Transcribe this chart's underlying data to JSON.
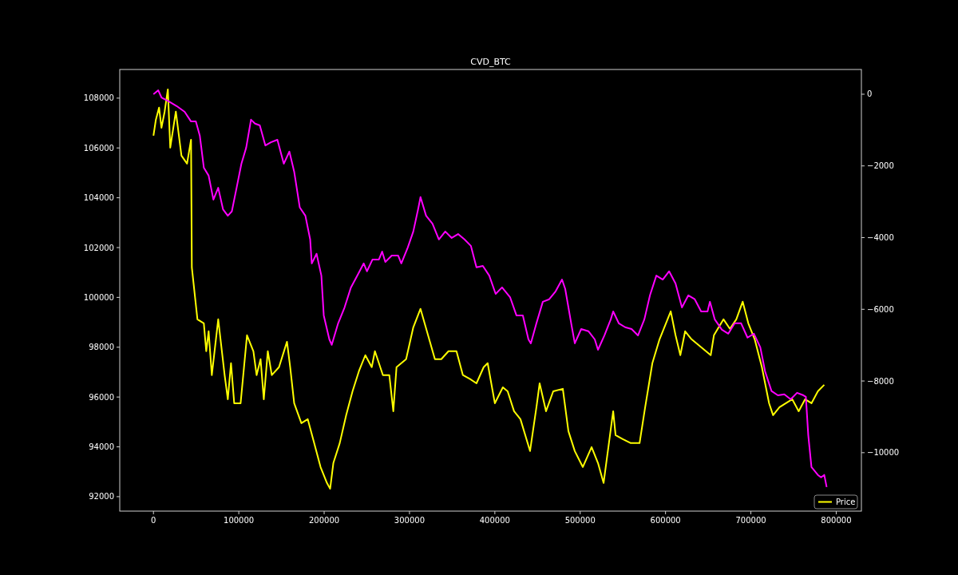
{
  "chart_data": {
    "type": "line",
    "title": "CVD_BTC",
    "xlim": [
      -39500,
      829500
    ],
    "xticks": [
      0,
      100000,
      200000,
      300000,
      400000,
      500000,
      600000,
      700000,
      800000
    ],
    "ylim": [
      91420,
      109150
    ],
    "yticks": [
      92000,
      94000,
      96000,
      98000,
      100000,
      102000,
      104000,
      106000,
      108000
    ],
    "y2lim": [
      -11630,
      690
    ],
    "y2ticks": [
      {
        "value": 0,
        "label": "0"
      },
      {
        "value": -2000,
        "label": "−2000"
      },
      {
        "value": -4000,
        "label": "−4000"
      },
      {
        "value": -6000,
        "label": "−6000"
      },
      {
        "value": -8000,
        "label": "−8000"
      },
      {
        "value": -10000,
        "label": "−10000"
      }
    ],
    "legend": "bottom right",
    "grid": false,
    "series": [
      {
        "name": "Price",
        "color": "#ffff00",
        "x": [
          0,
          2810,
          6560,
          9370,
          13110,
          16860,
          19670,
          26230,
          32790,
          39350,
          44030,
          44970,
          51520,
          59020,
          61830,
          64640,
          68390,
          75880,
          83380,
          87120,
          90870,
          94620,
          102110,
          109610,
          117100,
          120850,
          125530,
          129280,
          133960,
          138650,
          147080,
          156450,
          160190,
          164880,
          173310,
          180800,
          188300,
          195790,
          203290,
          207030,
          210780,
          218270,
          225770,
          233260,
          240760,
          248250,
          255750,
          259500,
          268860,
          276360,
          281040,
          284790,
          296030,
          304460,
          312890,
          320390,
          329760,
          337250,
          345680,
          355050,
          362550,
          370970,
          378470,
          386900,
          391580,
          400010,
          409380,
          415000,
          422500,
          430000,
          441240,
          448730,
          452480,
          459970,
          468400,
          479640,
          486200,
          493690,
          503060,
          513370,
          520860,
          527420,
          538660,
          541470,
          549900,
          559270,
          569580,
          576130,
          584560,
          593000,
          606110,
          611730,
          617350,
          622970,
          630470,
          641710,
          652950,
          656700,
          667940,
          675440,
          682930,
          690420,
          696980,
          704470,
          712900,
          721340,
          726020,
          733510,
          741010,
          748500,
          756000,
          763490,
          770990,
          778480,
          785970
        ],
        "values": [
          106490,
          107130,
          107620,
          106810,
          107460,
          108350,
          106010,
          107460,
          105690,
          105370,
          106330,
          101200,
          99120,
          98960,
          97840,
          98640,
          96880,
          99120,
          96880,
          95910,
          97360,
          95750,
          95750,
          98480,
          97840,
          96880,
          97520,
          95910,
          97840,
          96880,
          97200,
          98220,
          97200,
          95750,
          94950,
          95110,
          94150,
          93190,
          92550,
          92320,
          93350,
          94150,
          95270,
          96230,
          97040,
          97680,
          97200,
          97840,
          96880,
          96880,
          95430,
          97200,
          97520,
          98800,
          99540,
          98640,
          97520,
          97520,
          97840,
          97840,
          96880,
          96720,
          96550,
          97200,
          97360,
          95750,
          96390,
          96230,
          95430,
          95110,
          93830,
          95590,
          96550,
          95430,
          96230,
          96330,
          94630,
          93830,
          93190,
          93990,
          93350,
          92550,
          95430,
          94470,
          94310,
          94150,
          94150,
          95590,
          97360,
          98320,
          99440,
          98480,
          97680,
          98640,
          98320,
          98000,
          97680,
          98480,
          99120,
          98740,
          99120,
          99830,
          98960,
          98320,
          97200,
          95750,
          95270,
          95590,
          95750,
          95910,
          95430,
          95910,
          95750,
          96230,
          96490
        ]
      },
      {
        "color": "#ff00ff",
        "axis": "y2",
        "x": [
          0,
          5620,
          9370,
          17800,
          27170,
          36540,
          44030,
          49650,
          54330,
          59020,
          64640,
          70260,
          75880,
          81500,
          87120,
          91810,
          97430,
          103050,
          108670,
          114290,
          118970,
          124600,
          131150,
          137700,
          145200,
          152700,
          159260,
          164880,
          171440,
          178000,
          183610,
          185490,
          191110,
          196730,
          199540,
          206090,
          208900,
          216400,
          223890,
          231380,
          238880,
          246380,
          250130,
          256680,
          264180,
          267920,
          271670,
          279170,
          286660,
          290410,
          297900,
          304460,
          310080,
          312890,
          319450,
          326940,
          334440,
          341930,
          349430,
          356920,
          364420,
          371910,
          378470,
          385960,
          393460,
          400950,
          408450,
          417810,
          425310,
          432810,
          439360,
          442170,
          448730,
          456220,
          463720,
          471210,
          478710,
          482450,
          489950,
          493690,
          501190,
          509620,
          517110,
          520860,
          528350,
          535850,
          538660,
          545220,
          552710,
          560210,
          567700,
          575200,
          581760,
          589250,
          596750,
          604240,
          611730,
          619230,
          626730,
          634220,
          641710,
          649210,
          652020,
          657640,
          666070,
          673570,
          681060,
          688560,
          696050,
          703550,
          711040,
          716660,
          724160,
          731650,
          739150,
          746630,
          754120,
          761620,
          764430,
          767240,
          770990,
          778480,
          782230,
          785970,
          788780
        ],
        "values": [
          0,
          110,
          -90,
          -200,
          -330,
          -490,
          -760,
          -760,
          -1160,
          -2050,
          -2270,
          -2940,
          -2610,
          -3210,
          -3390,
          -3270,
          -2610,
          -1940,
          -1490,
          -710,
          -820,
          -870,
          -1430,
          -1340,
          -1270,
          -1940,
          -1600,
          -2160,
          -3160,
          -3390,
          -4050,
          -4720,
          -4450,
          -5060,
          -6170,
          -6840,
          -6990,
          -6390,
          -5950,
          -5390,
          -5060,
          -4720,
          -4940,
          -4610,
          -4610,
          -4390,
          -4680,
          -4500,
          -4500,
          -4720,
          -4280,
          -3830,
          -3210,
          -2870,
          -3390,
          -3610,
          -4050,
          -3830,
          -4010,
          -3900,
          -4050,
          -4230,
          -4830,
          -4790,
          -5060,
          -5570,
          -5390,
          -5660,
          -6170,
          -6170,
          -6840,
          -6950,
          -6390,
          -5790,
          -5720,
          -5500,
          -5170,
          -5430,
          -6460,
          -6950,
          -6550,
          -6610,
          -6840,
          -7130,
          -6730,
          -6280,
          -6060,
          -6390,
          -6500,
          -6550,
          -6730,
          -6280,
          -5610,
          -5060,
          -5170,
          -4940,
          -5280,
          -5950,
          -5610,
          -5720,
          -6060,
          -6060,
          -5790,
          -6280,
          -6570,
          -6680,
          -6390,
          -6390,
          -6790,
          -6680,
          -7060,
          -7730,
          -8280,
          -8400,
          -8370,
          -8510,
          -8330,
          -8400,
          -8440,
          -9510,
          -10400,
          -10620,
          -10690,
          -10620,
          -10960
        ]
      }
    ]
  }
}
